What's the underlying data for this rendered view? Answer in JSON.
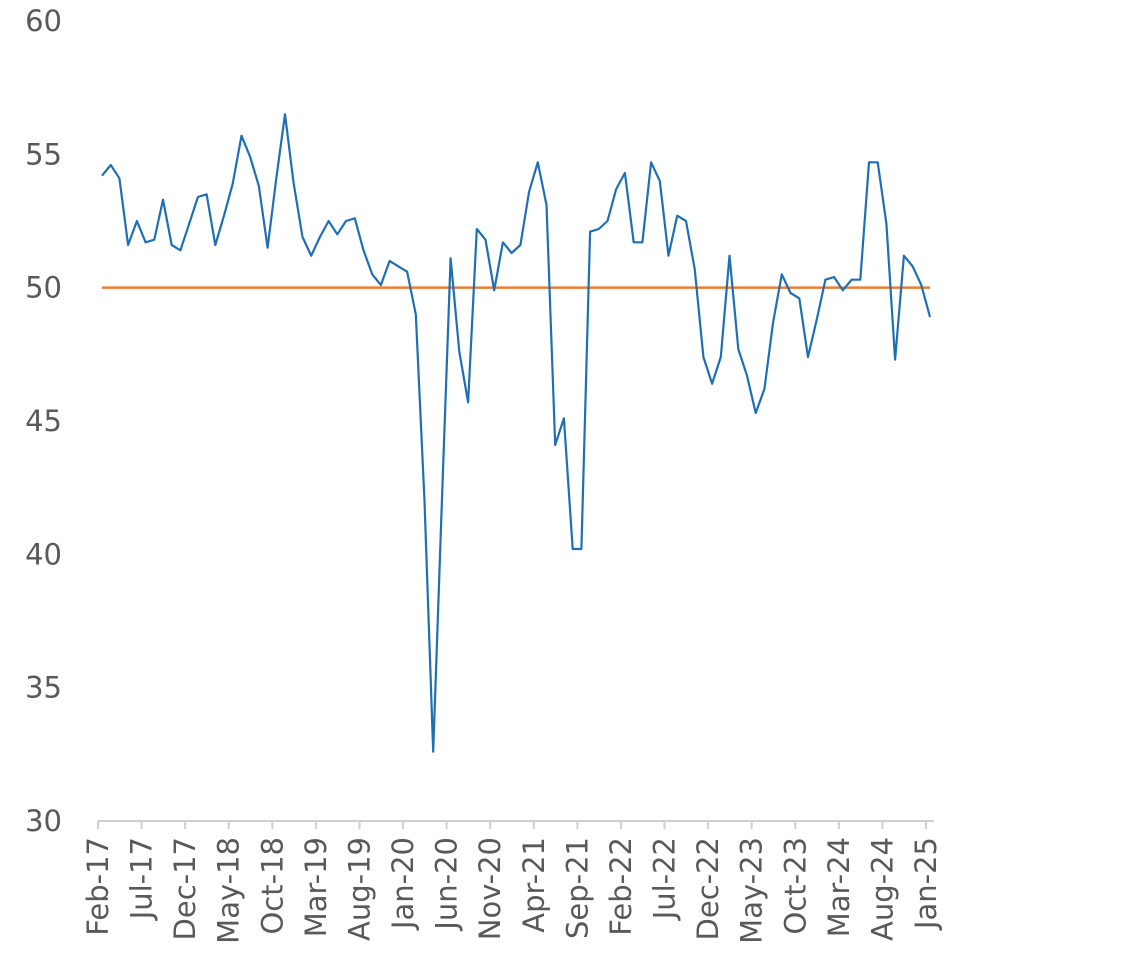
{
  "chart_data": {
    "type": "line",
    "categories": [
      "Feb-17",
      null,
      null,
      null,
      null,
      "Jul-17",
      null,
      null,
      null,
      null,
      "Dec-17",
      null,
      null,
      null,
      null,
      "May-18",
      null,
      null,
      null,
      null,
      "Oct-18",
      null,
      null,
      null,
      null,
      "Mar-19",
      null,
      null,
      null,
      null,
      "Aug-19",
      null,
      null,
      null,
      null,
      "Jan-20",
      null,
      null,
      null,
      null,
      "Jun-20",
      null,
      null,
      null,
      null,
      "Nov-20",
      null,
      null,
      null,
      null,
      "Apr-21",
      null,
      null,
      null,
      null,
      "Sep-21",
      null,
      null,
      null,
      null,
      "Feb-22",
      null,
      null,
      null,
      null,
      "Jul-22",
      null,
      null,
      null,
      null,
      "Dec-22",
      null,
      null,
      null,
      null,
      "May-23",
      null,
      null,
      null,
      null,
      "Oct-23",
      null,
      null,
      null,
      null,
      "Mar-24",
      null,
      null,
      null,
      null,
      "Aug-24",
      null,
      null,
      null,
      null,
      "Jan-25"
    ],
    "series": [
      {
        "color": "#1f6fb4",
        "values": [
          54.2,
          54.6,
          54.1,
          51.6,
          52.5,
          51.7,
          51.8,
          53.3,
          51.6,
          51.4,
          52.4,
          53.4,
          53.5,
          51.6,
          52.7,
          53.9,
          55.7,
          54.9,
          53.8,
          51.5,
          54.1,
          56.5,
          53.9,
          51.9,
          51.2,
          51.9,
          52.5,
          52.0,
          52.5,
          52.6,
          51.4,
          50.5,
          50.1,
          51.0,
          50.8,
          50.6,
          49.0,
          42.0,
          32.6,
          42.0,
          51.1,
          47.6,
          45.7,
          52.2,
          51.8,
          49.9,
          51.7,
          51.3,
          51.6,
          53.6,
          54.7,
          53.1,
          44.1,
          45.1,
          40.2,
          40.2,
          52.1,
          52.2,
          52.5,
          53.7,
          54.3,
          51.7,
          51.7,
          54.7,
          54.0,
          51.2,
          52.7,
          52.5,
          50.7,
          47.4,
          46.4,
          47.4,
          51.2,
          47.7,
          46.7,
          45.3,
          46.2,
          48.7,
          50.5,
          49.8,
          49.6,
          47.4,
          48.8,
          50.3,
          50.4,
          49.9,
          50.3,
          50.3,
          54.7,
          54.7,
          52.4,
          47.3,
          51.2,
          50.8,
          50.1,
          48.9
        ]
      }
    ],
    "reference_line": {
      "value": 50,
      "color": "#ed7d31"
    },
    "ylim": [
      30,
      60
    ],
    "yticks": [
      30,
      35,
      40,
      45,
      50,
      55,
      60
    ],
    "grid": false
  }
}
